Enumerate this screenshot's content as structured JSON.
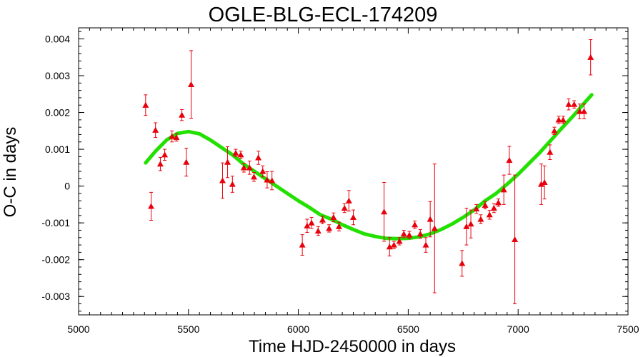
{
  "chart_data": {
    "type": "scatter",
    "title": "OGLE-BLG-ECL-174209",
    "xlabel": "Time HJD-2450000 in days",
    "ylabel": "O-C in days",
    "xlim": [
      5000,
      7500
    ],
    "ylim": [
      -0.0035,
      0.0043
    ],
    "x_ticks": [
      5000,
      5500,
      6000,
      6500,
      7000,
      7500
    ],
    "y_ticks": [
      -0.003,
      -0.002,
      -0.001,
      0,
      0.001,
      0.002,
      0.003,
      0.004
    ],
    "y_tick_labels": [
      "-0.003",
      "-0.002",
      "-0.001",
      "0",
      "0.001",
      "0.002",
      "0.003",
      "0.004"
    ],
    "grid": false,
    "legend": "none",
    "colors": {
      "points": "#e8000b",
      "fit": "#22e000"
    },
    "series": [
      {
        "marker": "triangle",
        "x": [
          5305,
          5330,
          5350,
          5372,
          5392,
          5425,
          5445,
          5470,
          5490,
          5512,
          5655,
          5678,
          5700,
          5715,
          5738,
          5752,
          5778,
          5798,
          5818,
          5838,
          5858,
          5880,
          6018,
          6040,
          6060,
          6090,
          6110,
          6140,
          6160,
          6185,
          6210,
          6230,
          6250,
          6390,
          6415,
          6435,
          6460,
          6480,
          6505,
          6530,
          6555,
          6580,
          6600,
          6620,
          6745,
          6765,
          6785,
          6810,
          6830,
          6850,
          6870,
          6890,
          6910,
          6935,
          6960,
          6985,
          7105,
          7120,
          7145,
          7165,
          7185,
          7205,
          7230,
          7255,
          7280,
          7300,
          7330
        ],
        "y": [
          0.0022,
          -0.00055,
          0.00152,
          0.0006,
          0.00085,
          0.00135,
          0.00132,
          0.00193,
          0.00065,
          0.00276,
          0.00015,
          0.00065,
          5e-05,
          0.0009,
          0.00085,
          0.0005,
          0.0005,
          0.00025,
          0.00077,
          0.0004,
          0.00017,
          0.00015,
          -0.0016,
          -0.00108,
          -0.001,
          -0.00122,
          -0.00092,
          -0.00115,
          -0.00085,
          -0.0011,
          -0.0006,
          -0.0004,
          -0.00085,
          -0.0007,
          -0.00165,
          -0.0016,
          -0.0015,
          -0.0013,
          -0.00133,
          -0.00105,
          -0.0013,
          -0.0016,
          -0.0009,
          -0.00115,
          -0.0021,
          -0.0011,
          -0.00103,
          -0.00062,
          -0.0009,
          -0.00052,
          -0.00078,
          -0.0006,
          -0.00045,
          -0.0001,
          0.0007,
          -0.00145,
          5e-05,
          0.0001,
          0.00092,
          0.0015,
          0.0018,
          0.0018,
          0.00222,
          0.00222,
          0.00203,
          0.00203,
          0.0035
        ],
        "yerr": [
          0.00028,
          0.00038,
          0.0002,
          0.00018,
          0.00015,
          0.00015,
          0.0001,
          0.00015,
          0.00038,
          0.00092,
          0.00048,
          0.00042,
          0.00022,
          0.0001,
          0.0001,
          0.00012,
          0.00018,
          0.00012,
          0.00018,
          0.00015,
          0.00022,
          0.00025,
          0.00028,
          0.00018,
          0.00015,
          0.00012,
          0.0001,
          0.0001,
          0.00012,
          0.00012,
          0.00012,
          0.00028,
          0.0002,
          0.0008,
          0.00025,
          0.0001,
          0.0001,
          0.0001,
          0.0001,
          0.0001,
          0.00012,
          0.0002,
          0.00048,
          0.00175,
          0.00035,
          0.0005,
          0.00038,
          0.00012,
          0.00012,
          0.0001,
          0.00012,
          0.00012,
          0.0001,
          0.0004,
          0.00038,
          0.00175,
          0.00055,
          0.00045,
          0.0002,
          0.0001,
          0.0001,
          0.0001,
          0.00015,
          0.0001,
          0.0002,
          0.0002,
          0.00048
        ]
      },
      {
        "kind": "fit-curve",
        "x": [
          5305,
          5350,
          5400,
          5450,
          5500,
          5550,
          5600,
          5650,
          5700,
          5750,
          5800,
          5850,
          5900,
          5950,
          6000,
          6050,
          6100,
          6150,
          6200,
          6250,
          6300,
          6350,
          6400,
          6450,
          6500,
          6550,
          6600,
          6650,
          6700,
          6750,
          6800,
          6850,
          6900,
          6950,
          7000,
          7050,
          7100,
          7150,
          7200,
          7250,
          7300,
          7335
        ],
        "y": [
          0.00063,
          0.00095,
          0.00125,
          0.00143,
          0.00148,
          0.00142,
          0.00125,
          0.00105,
          0.00085,
          0.0006,
          0.0004,
          0.0002,
          0.0,
          -0.0002,
          -0.0004,
          -0.00058,
          -0.00078,
          -0.0009,
          -0.00105,
          -0.00118,
          -0.0013,
          -0.00137,
          -0.00142,
          -0.00143,
          -0.00142,
          -0.00138,
          -0.0013,
          -0.00118,
          -0.00103,
          -0.00085,
          -0.00065,
          -0.0004,
          -0.0002,
          5e-05,
          0.00032,
          0.00062,
          0.00092,
          0.00125,
          0.00158,
          0.0019,
          0.00225,
          0.00248
        ]
      }
    ]
  }
}
